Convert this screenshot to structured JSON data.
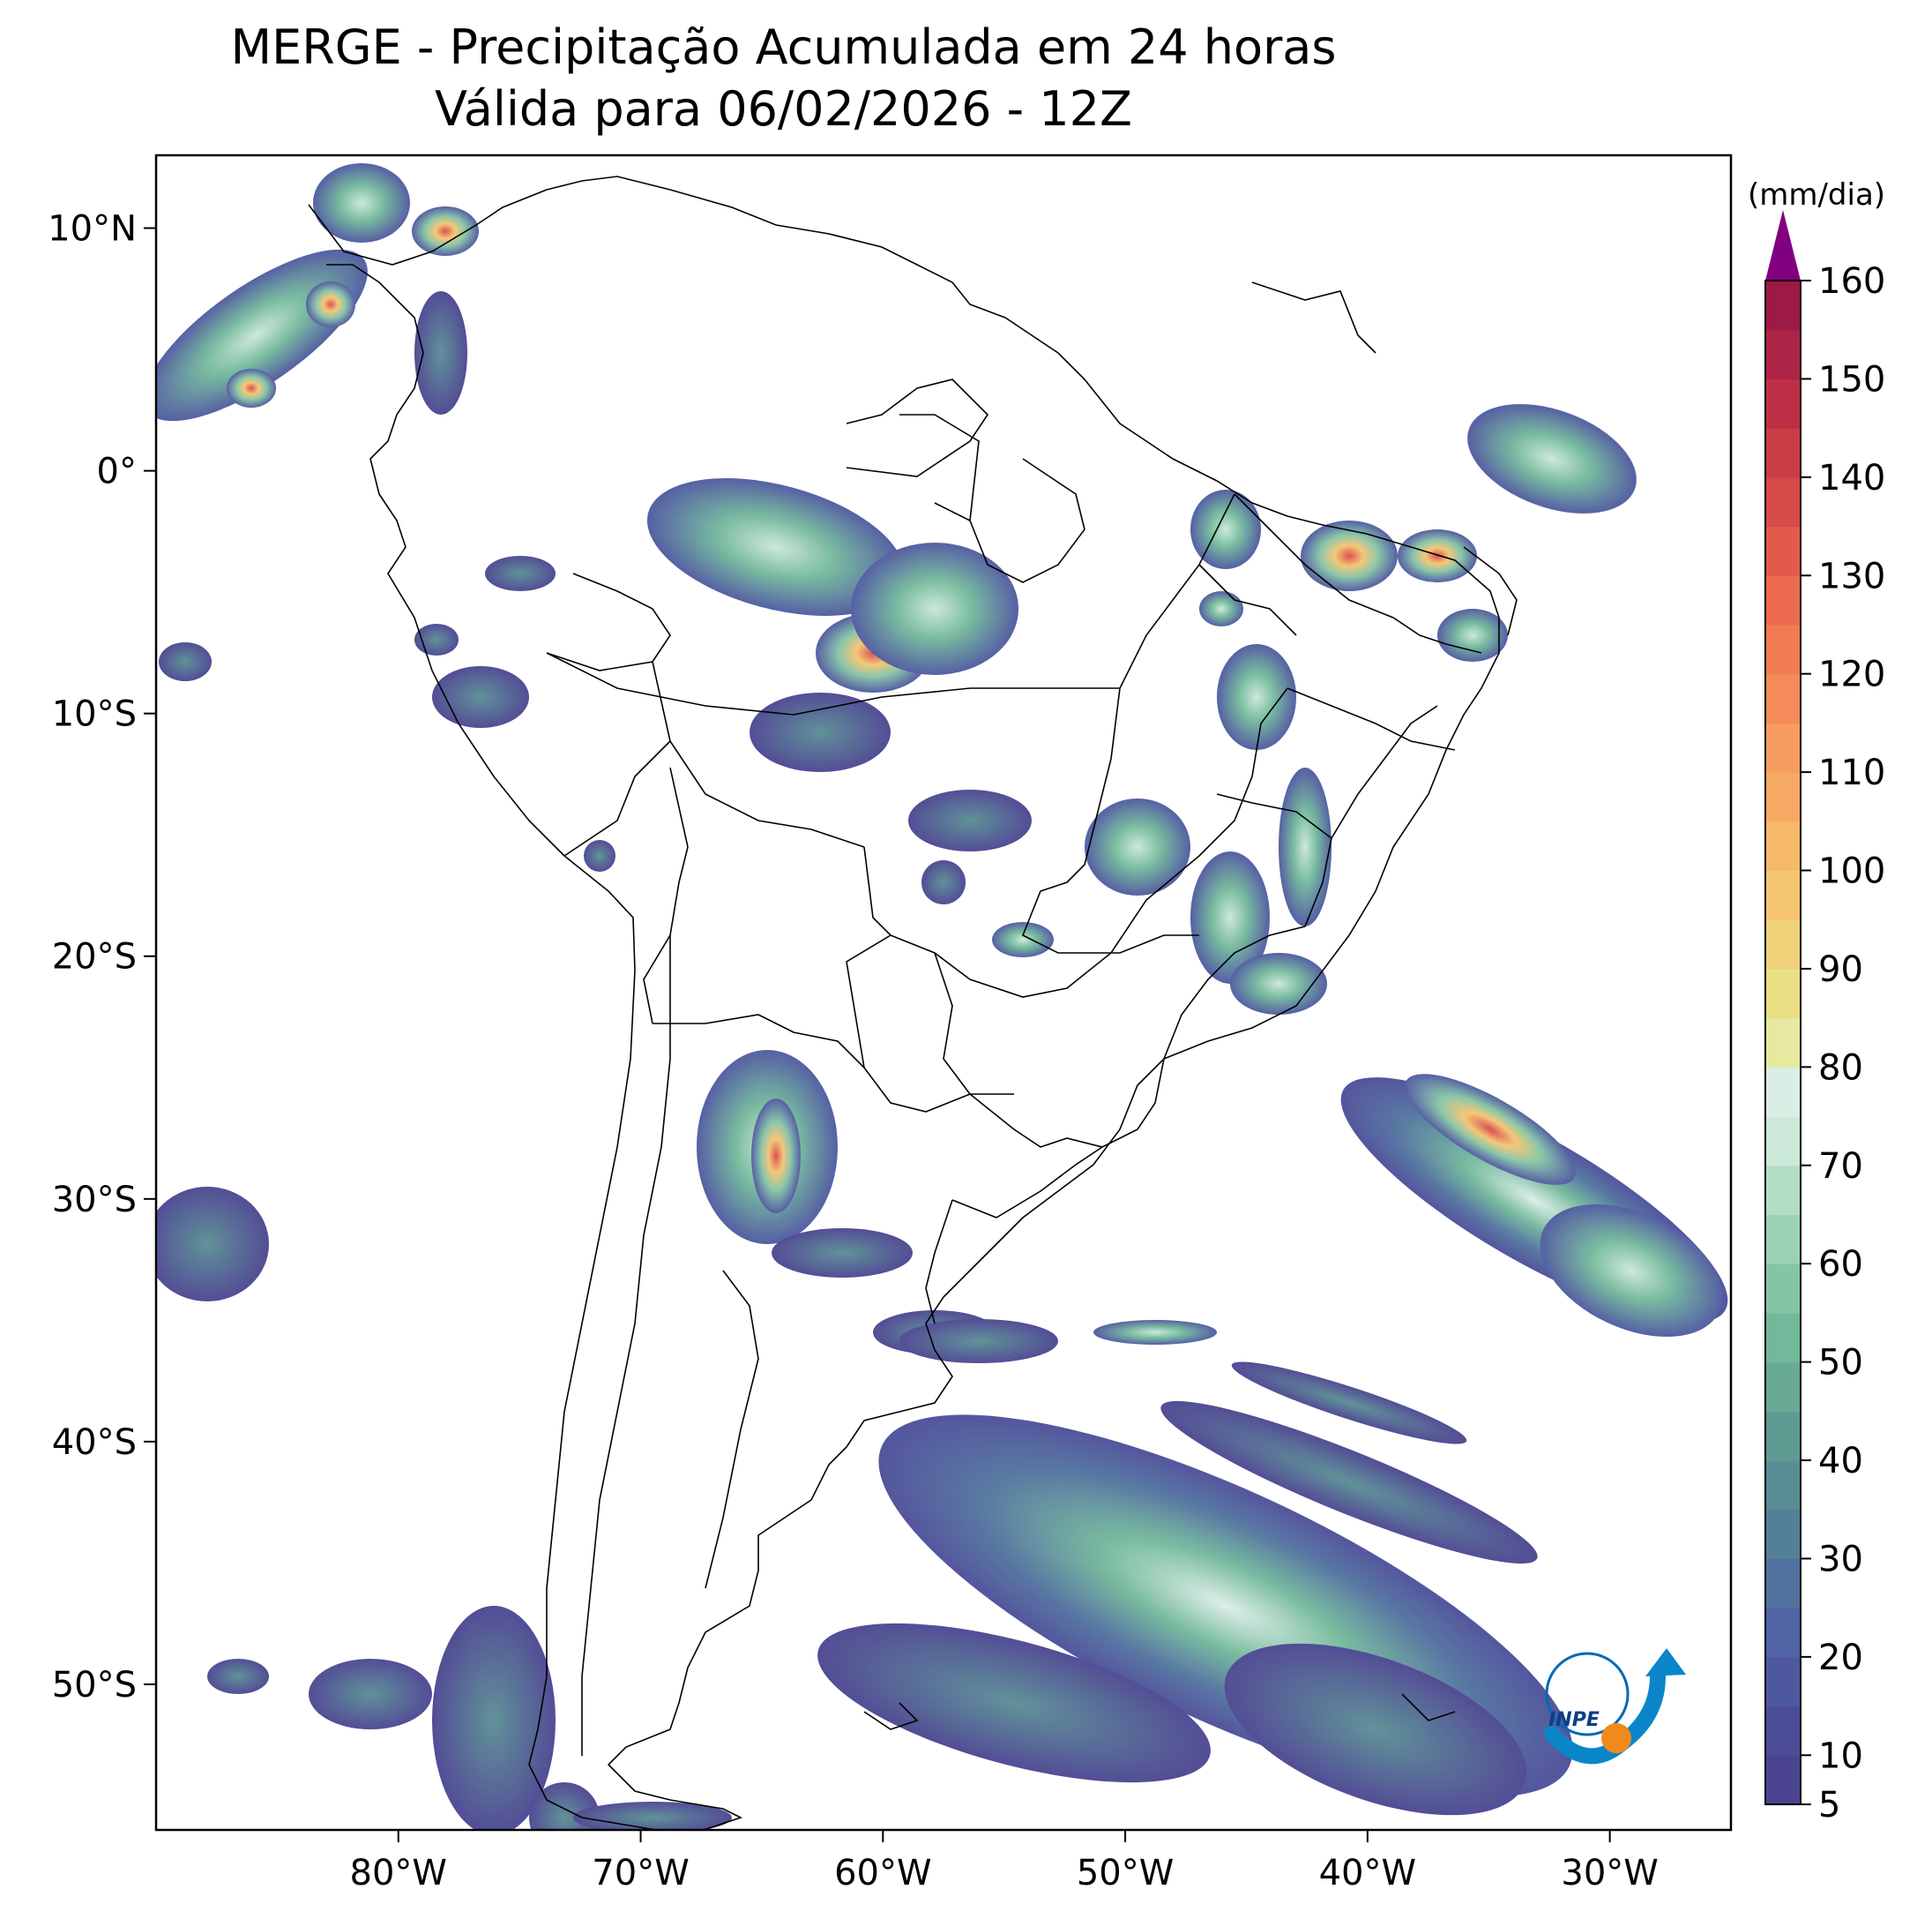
{
  "title": {
    "line1": "MERGE - Precipitação Acumulada em 24 horas",
    "line2": "Válida para 06/02/2026 - 12Z"
  },
  "map": {
    "lon_range": [
      -90,
      -25
    ],
    "lat_range": [
      -56,
      13
    ],
    "lon_ticks": [
      {
        "value": -80,
        "label": "80°W"
      },
      {
        "value": -70,
        "label": "70°W"
      },
      {
        "value": -60,
        "label": "60°W"
      },
      {
        "value": -50,
        "label": "50°W"
      },
      {
        "value": -40,
        "label": "40°W"
      },
      {
        "value": -30,
        "label": "30°W"
      }
    ],
    "lat_ticks": [
      {
        "value": 10,
        "label": "10°N"
      },
      {
        "value": 0,
        "label": "0°"
      },
      {
        "value": -10,
        "label": "10°S"
      },
      {
        "value": -20,
        "label": "20°S"
      },
      {
        "value": -30,
        "label": "30°S"
      },
      {
        "value": -40,
        "label": "40°S"
      },
      {
        "value": -50,
        "label": "50°S"
      }
    ]
  },
  "colorbar": {
    "unit": "(mm/dia)",
    "min": 5,
    "max": 160,
    "ticks": [
      {
        "value": 5,
        "label": "5"
      },
      {
        "value": 10,
        "label": "10"
      },
      {
        "value": 20,
        "label": "20"
      },
      {
        "value": 30,
        "label": "30"
      },
      {
        "value": 40,
        "label": "40"
      },
      {
        "value": 50,
        "label": "50"
      },
      {
        "value": 60,
        "label": "60"
      },
      {
        "value": 70,
        "label": "70"
      },
      {
        "value": 80,
        "label": "80"
      },
      {
        "value": 90,
        "label": "90"
      },
      {
        "value": 100,
        "label": "100"
      },
      {
        "value": 110,
        "label": "110"
      },
      {
        "value": 120,
        "label": "120"
      },
      {
        "value": 130,
        "label": "130"
      },
      {
        "value": 140,
        "label": "140"
      },
      {
        "value": 150,
        "label": "150"
      },
      {
        "value": 160,
        "label": "160"
      }
    ],
    "extend_color": "#800080",
    "colors": [
      "#4a4491",
      "#4b4d99",
      "#4d58a0",
      "#4f63a5",
      "#51729e",
      "#548097",
      "#598d94",
      "#5f9a93",
      "#68aa95",
      "#72b89b",
      "#85c4a6",
      "#9cd1b5",
      "#b4ddc7",
      "#cbe8d9",
      "#dbeee6",
      "#e6eaa0",
      "#eadf84",
      "#efd179",
      "#f5c571",
      "#f6b96a",
      "#f7aa64",
      "#f79c5e",
      "#f58b58",
      "#f27b52",
      "#ec6b4e",
      "#e35a4b",
      "#d84a48",
      "#cc3c47",
      "#be2f46",
      "#ae2446",
      "#9c1a45"
    ]
  },
  "logo": {
    "text": "INPE"
  }
}
